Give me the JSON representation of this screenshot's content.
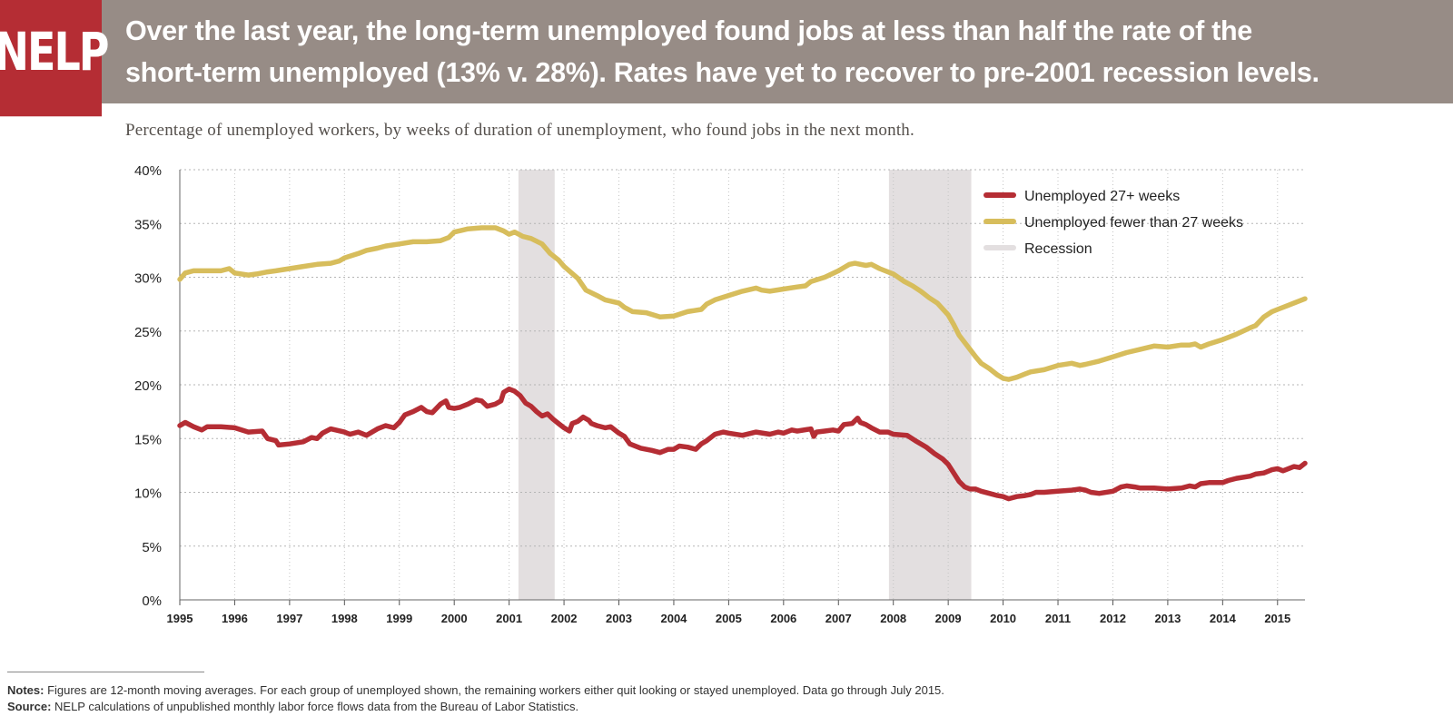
{
  "header": {
    "logo": "NELP",
    "headline_line1": "Over the last year, the long-term unemployed found jobs at less than half the rate of the",
    "headline_line2": "short-term unemployed (13% v. 28%).  Rates have yet to recover to pre-2001 recession levels.",
    "background_color": "#978c86",
    "logo_color": "#b52d34"
  },
  "subtitle": "Percentage of unemployed workers, by weeks of duration of unemployment, who found jobs in the next month.",
  "notes": {
    "notes_label": "Notes:",
    "notes_text": " Figures are 12-month moving averages. For each group of unemployed shown, the remaining workers either quit looking or stayed unemployed. Data go through July 2015.",
    "source_label": "Source:",
    "source_text": " NELP calculations of unpublished monthly labor force flows data from the Bureau of Labor Statistics."
  },
  "chart_data": {
    "type": "line",
    "xlim": [
      1995,
      2015.5
    ],
    "ylim": [
      0,
      40
    ],
    "x_tick_labels": [
      "1995",
      "1996",
      "1997",
      "1998",
      "1999",
      "2000",
      "2001",
      "2002",
      "2003",
      "2004",
      "2005",
      "2006",
      "2007",
      "2008",
      "2009",
      "2010",
      "2011",
      "2012",
      "2013",
      "2014",
      "2015"
    ],
    "y_tick_labels": [
      "0%",
      "5%",
      "10%",
      "15%",
      "20%",
      "25%",
      "30%",
      "35%",
      "40%"
    ],
    "grid": true,
    "legend_position": "top-right",
    "legend": [
      "Unemployed 27+ weeks",
      "Unemployed fewer than 27 weeks",
      "Recession"
    ],
    "recessions": [
      {
        "start": 2001.17,
        "end": 2001.83
      },
      {
        "start": 2007.92,
        "end": 2009.42
      }
    ],
    "series": [
      {
        "name": "Unemployed 27+ weeks",
        "color": "#b52d34",
        "points": [
          [
            1995.0,
            16.2
          ],
          [
            1995.1,
            16.5
          ],
          [
            1995.25,
            16.1
          ],
          [
            1995.4,
            15.8
          ],
          [
            1995.5,
            16.1
          ],
          [
            1995.75,
            16.1
          ],
          [
            1996.0,
            16.0
          ],
          [
            1996.25,
            15.6
          ],
          [
            1996.5,
            15.7
          ],
          [
            1996.6,
            15.0
          ],
          [
            1996.75,
            14.8
          ],
          [
            1996.8,
            14.4
          ],
          [
            1997.0,
            14.5
          ],
          [
            1997.25,
            14.7
          ],
          [
            1997.4,
            15.1
          ],
          [
            1997.5,
            15.0
          ],
          [
            1997.6,
            15.5
          ],
          [
            1997.75,
            15.9
          ],
          [
            1998.0,
            15.6
          ],
          [
            1998.1,
            15.4
          ],
          [
            1998.25,
            15.6
          ],
          [
            1998.4,
            15.3
          ],
          [
            1998.6,
            15.9
          ],
          [
            1998.75,
            16.2
          ],
          [
            1998.9,
            16.0
          ],
          [
            1999.0,
            16.5
          ],
          [
            1999.1,
            17.2
          ],
          [
            1999.25,
            17.5
          ],
          [
            1999.4,
            17.9
          ],
          [
            1999.5,
            17.5
          ],
          [
            1999.6,
            17.4
          ],
          [
            1999.75,
            18.2
          ],
          [
            1999.85,
            18.5
          ],
          [
            1999.9,
            17.9
          ],
          [
            2000.0,
            17.8
          ],
          [
            2000.1,
            17.9
          ],
          [
            2000.25,
            18.2
          ],
          [
            2000.4,
            18.6
          ],
          [
            2000.5,
            18.5
          ],
          [
            2000.6,
            18.0
          ],
          [
            2000.75,
            18.2
          ],
          [
            2000.85,
            18.5
          ],
          [
            2000.9,
            19.3
          ],
          [
            2001.0,
            19.6
          ],
          [
            2001.1,
            19.4
          ],
          [
            2001.2,
            19.0
          ],
          [
            2001.3,
            18.3
          ],
          [
            2001.4,
            18.0
          ],
          [
            2001.5,
            17.5
          ],
          [
            2001.6,
            17.1
          ],
          [
            2001.7,
            17.3
          ],
          [
            2001.8,
            16.8
          ],
          [
            2001.9,
            16.4
          ],
          [
            2002.0,
            16.0
          ],
          [
            2002.1,
            15.7
          ],
          [
            2002.15,
            16.4
          ],
          [
            2002.25,
            16.6
          ],
          [
            2002.35,
            17.0
          ],
          [
            2002.45,
            16.7
          ],
          [
            2002.5,
            16.4
          ],
          [
            2002.6,
            16.2
          ],
          [
            2002.75,
            16.0
          ],
          [
            2002.85,
            16.1
          ],
          [
            2003.0,
            15.5
          ],
          [
            2003.1,
            15.2
          ],
          [
            2003.2,
            14.5
          ],
          [
            2003.4,
            14.1
          ],
          [
            2003.6,
            13.9
          ],
          [
            2003.75,
            13.7
          ],
          [
            2003.9,
            14.0
          ],
          [
            2004.0,
            14.0
          ],
          [
            2004.1,
            14.3
          ],
          [
            2004.25,
            14.2
          ],
          [
            2004.4,
            14.0
          ],
          [
            2004.5,
            14.5
          ],
          [
            2004.6,
            14.8
          ],
          [
            2004.75,
            15.4
          ],
          [
            2004.9,
            15.6
          ],
          [
            2005.0,
            15.5
          ],
          [
            2005.25,
            15.3
          ],
          [
            2005.5,
            15.6
          ],
          [
            2005.75,
            15.4
          ],
          [
            2005.9,
            15.6
          ],
          [
            2006.0,
            15.5
          ],
          [
            2006.15,
            15.8
          ],
          [
            2006.25,
            15.7
          ],
          [
            2006.5,
            15.9
          ],
          [
            2006.55,
            15.2
          ],
          [
            2006.6,
            15.6
          ],
          [
            2006.75,
            15.7
          ],
          [
            2006.9,
            15.8
          ],
          [
            2007.0,
            15.7
          ],
          [
            2007.1,
            16.3
          ],
          [
            2007.25,
            16.4
          ],
          [
            2007.35,
            16.9
          ],
          [
            2007.4,
            16.5
          ],
          [
            2007.5,
            16.3
          ],
          [
            2007.6,
            16.0
          ],
          [
            2007.75,
            15.6
          ],
          [
            2007.9,
            15.6
          ],
          [
            2008.0,
            15.4
          ],
          [
            2008.25,
            15.3
          ],
          [
            2008.4,
            14.8
          ],
          [
            2008.6,
            14.2
          ],
          [
            2008.75,
            13.6
          ],
          [
            2008.9,
            13.1
          ],
          [
            2009.0,
            12.6
          ],
          [
            2009.1,
            11.8
          ],
          [
            2009.2,
            11.0
          ],
          [
            2009.3,
            10.5
          ],
          [
            2009.4,
            10.3
          ],
          [
            2009.5,
            10.3
          ],
          [
            2009.6,
            10.1
          ],
          [
            2009.75,
            9.9
          ],
          [
            2009.9,
            9.7
          ],
          [
            2010.0,
            9.6
          ],
          [
            2010.1,
            9.4
          ],
          [
            2010.25,
            9.6
          ],
          [
            2010.4,
            9.7
          ],
          [
            2010.5,
            9.8
          ],
          [
            2010.6,
            10.0
          ],
          [
            2010.75,
            10.0
          ],
          [
            2011.0,
            10.1
          ],
          [
            2011.25,
            10.2
          ],
          [
            2011.4,
            10.3
          ],
          [
            2011.5,
            10.2
          ],
          [
            2011.6,
            10.0
          ],
          [
            2011.75,
            9.9
          ],
          [
            2012.0,
            10.1
          ],
          [
            2012.15,
            10.5
          ],
          [
            2012.25,
            10.6
          ],
          [
            2012.4,
            10.5
          ],
          [
            2012.5,
            10.4
          ],
          [
            2012.75,
            10.4
          ],
          [
            2013.0,
            10.3
          ],
          [
            2013.25,
            10.4
          ],
          [
            2013.4,
            10.6
          ],
          [
            2013.5,
            10.5
          ],
          [
            2013.6,
            10.8
          ],
          [
            2013.75,
            10.9
          ],
          [
            2014.0,
            10.9
          ],
          [
            2014.1,
            11.1
          ],
          [
            2014.25,
            11.3
          ],
          [
            2014.5,
            11.5
          ],
          [
            2014.6,
            11.7
          ],
          [
            2014.75,
            11.8
          ],
          [
            2014.9,
            12.1
          ],
          [
            2015.0,
            12.2
          ],
          [
            2015.1,
            12.0
          ],
          [
            2015.2,
            12.2
          ],
          [
            2015.3,
            12.4
          ],
          [
            2015.4,
            12.3
          ],
          [
            2015.5,
            12.7
          ]
        ]
      },
      {
        "name": "Unemployed fewer than 27 weeks",
        "color": "#d7bd5c",
        "points": [
          [
            1995.0,
            29.8
          ],
          [
            1995.1,
            30.4
          ],
          [
            1995.25,
            30.6
          ],
          [
            1995.5,
            30.6
          ],
          [
            1995.75,
            30.6
          ],
          [
            1995.9,
            30.8
          ],
          [
            1996.0,
            30.4
          ],
          [
            1996.25,
            30.2
          ],
          [
            1996.4,
            30.3
          ],
          [
            1996.6,
            30.5
          ],
          [
            1996.75,
            30.6
          ],
          [
            1997.0,
            30.8
          ],
          [
            1997.25,
            31.0
          ],
          [
            1997.5,
            31.2
          ],
          [
            1997.75,
            31.3
          ],
          [
            1997.9,
            31.5
          ],
          [
            1998.0,
            31.8
          ],
          [
            1998.25,
            32.2
          ],
          [
            1998.4,
            32.5
          ],
          [
            1998.6,
            32.7
          ],
          [
            1998.75,
            32.9
          ],
          [
            1999.0,
            33.1
          ],
          [
            1999.25,
            33.3
          ],
          [
            1999.5,
            33.3
          ],
          [
            1999.75,
            33.4
          ],
          [
            1999.9,
            33.7
          ],
          [
            2000.0,
            34.2
          ],
          [
            2000.25,
            34.5
          ],
          [
            2000.5,
            34.6
          ],
          [
            2000.75,
            34.6
          ],
          [
            2000.9,
            34.3
          ],
          [
            2001.0,
            34.0
          ],
          [
            2001.1,
            34.2
          ],
          [
            2001.25,
            33.8
          ],
          [
            2001.4,
            33.6
          ],
          [
            2001.6,
            33.1
          ],
          [
            2001.75,
            32.2
          ],
          [
            2001.9,
            31.6
          ],
          [
            2002.0,
            31.0
          ],
          [
            2002.25,
            29.9
          ],
          [
            2002.4,
            28.8
          ],
          [
            2002.6,
            28.3
          ],
          [
            2002.75,
            27.9
          ],
          [
            2003.0,
            27.6
          ],
          [
            2003.1,
            27.2
          ],
          [
            2003.25,
            26.8
          ],
          [
            2003.5,
            26.7
          ],
          [
            2003.75,
            26.3
          ],
          [
            2004.0,
            26.4
          ],
          [
            2004.25,
            26.8
          ],
          [
            2004.5,
            27.0
          ],
          [
            2004.6,
            27.5
          ],
          [
            2004.75,
            27.9
          ],
          [
            2005.0,
            28.3
          ],
          [
            2005.25,
            28.7
          ],
          [
            2005.5,
            29.0
          ],
          [
            2005.6,
            28.8
          ],
          [
            2005.75,
            28.7
          ],
          [
            2006.0,
            28.9
          ],
          [
            2006.25,
            29.1
          ],
          [
            2006.4,
            29.2
          ],
          [
            2006.5,
            29.6
          ],
          [
            2006.75,
            30.0
          ],
          [
            2007.0,
            30.6
          ],
          [
            2007.1,
            30.9
          ],
          [
            2007.2,
            31.2
          ],
          [
            2007.3,
            31.3
          ],
          [
            2007.5,
            31.1
          ],
          [
            2007.6,
            31.2
          ],
          [
            2007.75,
            30.8
          ],
          [
            2008.0,
            30.3
          ],
          [
            2008.2,
            29.6
          ],
          [
            2008.35,
            29.2
          ],
          [
            2008.5,
            28.7
          ],
          [
            2008.65,
            28.1
          ],
          [
            2008.8,
            27.6
          ],
          [
            2009.0,
            26.5
          ],
          [
            2009.1,
            25.6
          ],
          [
            2009.2,
            24.6
          ],
          [
            2009.35,
            23.6
          ],
          [
            2009.5,
            22.6
          ],
          [
            2009.6,
            22.0
          ],
          [
            2009.75,
            21.5
          ],
          [
            2009.9,
            20.9
          ],
          [
            2010.0,
            20.6
          ],
          [
            2010.1,
            20.5
          ],
          [
            2010.25,
            20.7
          ],
          [
            2010.4,
            21.0
          ],
          [
            2010.5,
            21.2
          ],
          [
            2010.75,
            21.4
          ],
          [
            2011.0,
            21.8
          ],
          [
            2011.25,
            22.0
          ],
          [
            2011.4,
            21.8
          ],
          [
            2011.5,
            21.9
          ],
          [
            2011.75,
            22.2
          ],
          [
            2012.0,
            22.6
          ],
          [
            2012.25,
            23.0
          ],
          [
            2012.5,
            23.3
          ],
          [
            2012.75,
            23.6
          ],
          [
            2013.0,
            23.5
          ],
          [
            2013.25,
            23.7
          ],
          [
            2013.4,
            23.7
          ],
          [
            2013.5,
            23.8
          ],
          [
            2013.6,
            23.5
          ],
          [
            2013.75,
            23.8
          ],
          [
            2014.0,
            24.2
          ],
          [
            2014.25,
            24.7
          ],
          [
            2014.5,
            25.3
          ],
          [
            2014.6,
            25.5
          ],
          [
            2014.75,
            26.3
          ],
          [
            2014.9,
            26.8
          ],
          [
            2015.0,
            27.0
          ],
          [
            2015.2,
            27.4
          ],
          [
            2015.3,
            27.6
          ],
          [
            2015.4,
            27.8
          ],
          [
            2015.5,
            28.0
          ]
        ]
      }
    ]
  }
}
